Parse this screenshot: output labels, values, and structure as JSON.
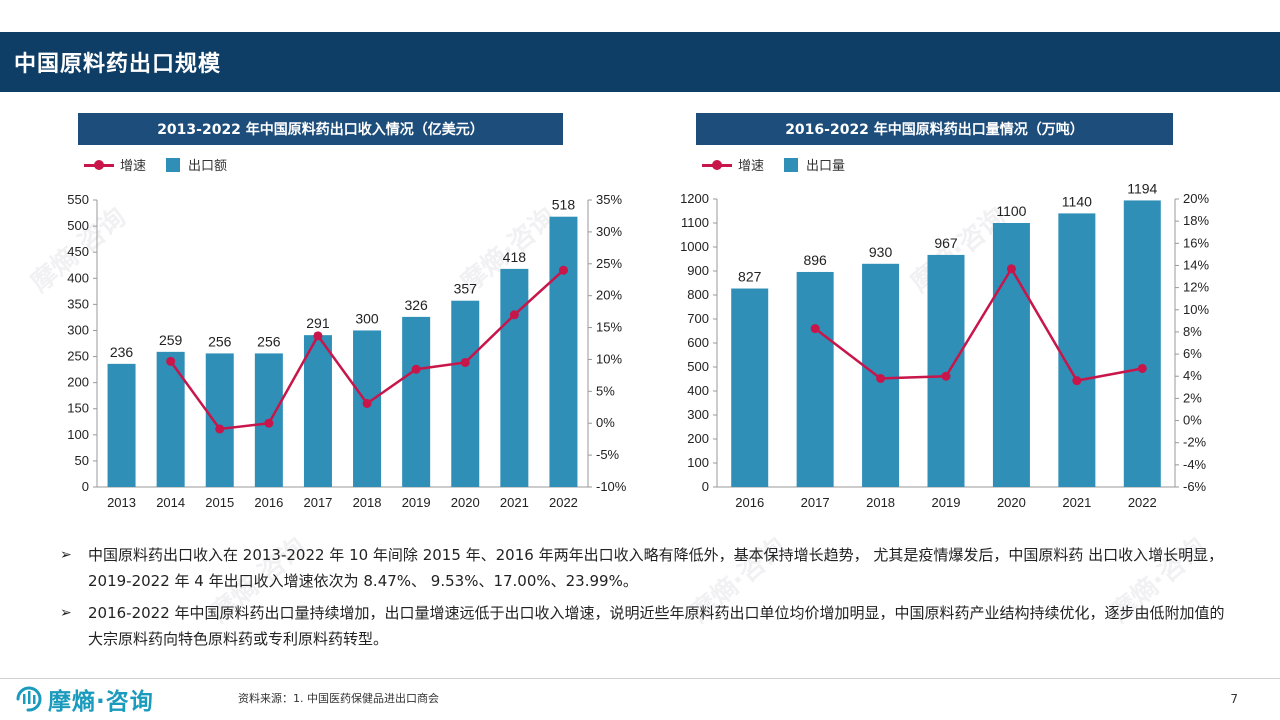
{
  "header": {
    "title": "中国原料药出口规模"
  },
  "colors": {
    "bar": "#2f8fb7",
    "line": "#c8154a",
    "header_bg": "#0e3d66",
    "subheader_bg": "#1d4d7b"
  },
  "watermark": "摩熵·咨询",
  "chart_data": [
    {
      "type": "bar",
      "title": "2013-2022 年中国原料药出口收入情况（亿美元）",
      "legend": {
        "line": "增速",
        "bar": "出口额"
      },
      "categories": [
        "2013",
        "2014",
        "2015",
        "2016",
        "2017",
        "2018",
        "2019",
        "2020",
        "2021",
        "2022"
      ],
      "series": [
        {
          "name": "出口额",
          "type": "bar",
          "axis": "left",
          "values": [
            236,
            259,
            256,
            256,
            291,
            300,
            326,
            357,
            418,
            518
          ]
        },
        {
          "name": "增速",
          "type": "line",
          "axis": "right",
          "values": [
            null,
            9.7,
            -0.9,
            0.0,
            13.7,
            3.1,
            8.47,
            9.53,
            17.0,
            23.99
          ]
        }
      ],
      "ylim": [
        0,
        550
      ],
      "yticks": [
        "0",
        "50",
        "100",
        "150",
        "200",
        "250",
        "300",
        "350",
        "400",
        "450",
        "500",
        "550"
      ],
      "y2lim": [
        -10,
        35
      ],
      "y2ticks": [
        "-10%",
        "-5%",
        "0%",
        "5%",
        "10%",
        "15%",
        "20%",
        "25%",
        "30%",
        "35%"
      ],
      "grid": false,
      "legend_position": "top-left"
    },
    {
      "type": "bar",
      "title": "2016-2022 年中国原料药出口量情况（万吨）",
      "legend": {
        "line": "增速",
        "bar": "出口量"
      },
      "categories": [
        "2016",
        "2017",
        "2018",
        "2019",
        "2020",
        "2021",
        "2022"
      ],
      "series": [
        {
          "name": "出口量",
          "type": "bar",
          "axis": "left",
          "values": [
            827,
            896,
            930,
            967,
            1100,
            1140,
            1194
          ]
        },
        {
          "name": "增速",
          "type": "line",
          "axis": "right",
          "values": [
            null,
            8.3,
            3.8,
            4.0,
            13.7,
            3.6,
            4.7
          ]
        }
      ],
      "ylim": [
        0,
        1200
      ],
      "yticks": [
        "0",
        "100",
        "200",
        "300",
        "400",
        "500",
        "600",
        "700",
        "800",
        "900",
        "1000",
        "1100",
        "1200"
      ],
      "y2lim": [
        -6,
        20
      ],
      "y2ticks": [
        "-6%",
        "-4%",
        "-2%",
        "0%",
        "2%",
        "4%",
        "6%",
        "8%",
        "10%",
        "12%",
        "14%",
        "16%",
        "18%",
        "20%"
      ],
      "grid": false,
      "legend_position": "top-left"
    }
  ],
  "bullets": [
    "中国原料药出口收入在 2013-2022 年 10 年间除 2015 年、2016 年两年出口收入略有降低外，基本保持增长趋势， 尤其是疫情爆发后，中国原料药 出口收入增长明显，2019-2022 年 4 年出口收入增速依次为 8.47%、 9.53%、17.00%、23.99%。",
    "2016-2022 年中国原料药出口量持续增加，出口量增速远低于出口收入增速，说明近些年原料药出口单位均价增加明显，中国原料药产业结构持续优化，逐步由低附加值的大宗原料药向特色原料药或专利原料药转型。"
  ],
  "bullet_mark": "➢",
  "footer": {
    "logo_text": "摩熵·咨询",
    "source": "资料来源：1. 中国医药保健品进出口商会",
    "page": "7"
  }
}
